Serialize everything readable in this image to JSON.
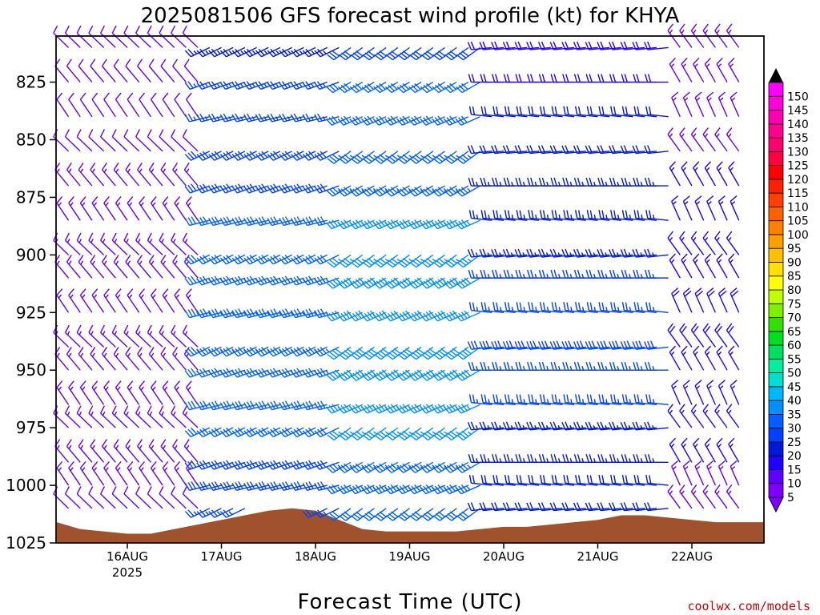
{
  "chart_data": {
    "type": "wind_barb_profile",
    "title": "2025081506 GFS forecast wind profile (kt) for KHYA",
    "xlabel": "Forecast Time (UTC)",
    "ylabel": "",
    "credit": "coolwx.com/models",
    "y_axis": {
      "scale": "pressure (inverted)",
      "ylim": [
        1025,
        805
      ],
      "tick_labels": [
        "825",
        "850",
        "875",
        "900",
        "925",
        "950",
        "975",
        "1000",
        "1025"
      ]
    },
    "x_axis": {
      "tick_labels": [
        "16AUG",
        "17AUG",
        "18AUG",
        "19AUG",
        "20AUG",
        "21AUG",
        "22AUG"
      ],
      "year_label": "2025",
      "xlim_hours": [
        0,
        174
      ]
    },
    "pressure_levels": [
      810,
      825,
      840,
      855,
      870,
      885,
      900,
      910,
      925,
      940,
      950,
      965,
      975,
      990,
      1000,
      1010,
      1020
    ],
    "time_step_hours": 3,
    "wind_regimes": [
      {
        "from_hour": 0,
        "to_hour": 36,
        "direction_deg": 320,
        "speed_kt": [
          8,
          15
        ],
        "note": "northwesterly"
      },
      {
        "from_hour": 36,
        "to_hour": 72,
        "direction_deg": 250,
        "speed_kt": [
          15,
          35
        ],
        "note": "west-southwesterly"
      },
      {
        "from_hour": 72,
        "to_hour": 108,
        "direction_deg": 240,
        "speed_kt": [
          20,
          40
        ],
        "note": "southwesterly"
      },
      {
        "from_hour": 108,
        "to_hour": 156,
        "direction_deg": 270,
        "speed_kt": [
          10,
          28
        ],
        "note": "westerly"
      },
      {
        "from_hour": 156,
        "to_hour": 174,
        "direction_deg": 330,
        "speed_kt": [
          8,
          18
        ],
        "note": "northwesterly"
      }
    ],
    "surface_pressure_hpa": [
      {
        "hour": 0,
        "p": 1016
      },
      {
        "hour": 6,
        "p": 1019
      },
      {
        "hour": 12,
        "p": 1020
      },
      {
        "hour": 18,
        "p": 1021
      },
      {
        "hour": 24,
        "p": 1021
      },
      {
        "hour": 30,
        "p": 1019
      },
      {
        "hour": 36,
        "p": 1017
      },
      {
        "hour": 42,
        "p": 1015
      },
      {
        "hour": 48,
        "p": 1013
      },
      {
        "hour": 54,
        "p": 1011
      },
      {
        "hour": 60,
        "p": 1010
      },
      {
        "hour": 66,
        "p": 1011
      },
      {
        "hour": 72,
        "p": 1015
      },
      {
        "hour": 78,
        "p": 1019
      },
      {
        "hour": 84,
        "p": 1020
      },
      {
        "hour": 90,
        "p": 1020
      },
      {
        "hour": 96,
        "p": 1020
      },
      {
        "hour": 102,
        "p": 1020
      },
      {
        "hour": 108,
        "p": 1019
      },
      {
        "hour": 114,
        "p": 1018
      },
      {
        "hour": 120,
        "p": 1018
      },
      {
        "hour": 126,
        "p": 1017
      },
      {
        "hour": 132,
        "p": 1016
      },
      {
        "hour": 138,
        "p": 1015
      },
      {
        "hour": 144,
        "p": 1013
      },
      {
        "hour": 150,
        "p": 1013
      },
      {
        "hour": 156,
        "p": 1014
      },
      {
        "hour": 162,
        "p": 1015
      },
      {
        "hour": 168,
        "p": 1016
      },
      {
        "hour": 174,
        "p": 1016
      }
    ],
    "colorbar": {
      "units": "kt",
      "levels": [
        5,
        10,
        15,
        20,
        25,
        30,
        35,
        40,
        45,
        50,
        55,
        60,
        65,
        70,
        75,
        80,
        85,
        90,
        95,
        100,
        105,
        110,
        115,
        120,
        125,
        130,
        135,
        140,
        145,
        150
      ],
      "colors": [
        "#8000ff",
        "#6000ff",
        "#2000ff",
        "#0018d8",
        "#0040ff",
        "#0060ff",
        "#0090ff",
        "#00b8ff",
        "#00e0d0",
        "#00f0a0",
        "#00e060",
        "#00e020",
        "#30e000",
        "#80f000",
        "#c0ff00",
        "#ffff00",
        "#ffe000",
        "#ffc000",
        "#ffa000",
        "#ff8000",
        "#ff6000",
        "#ff4000",
        "#ff2000",
        "#ff0000",
        "#ff0040",
        "#ff0070",
        "#ff0090",
        "#ff00b0",
        "#ff00d8",
        "#ff00ff"
      ]
    },
    "ground_color": "#a0522d"
  }
}
